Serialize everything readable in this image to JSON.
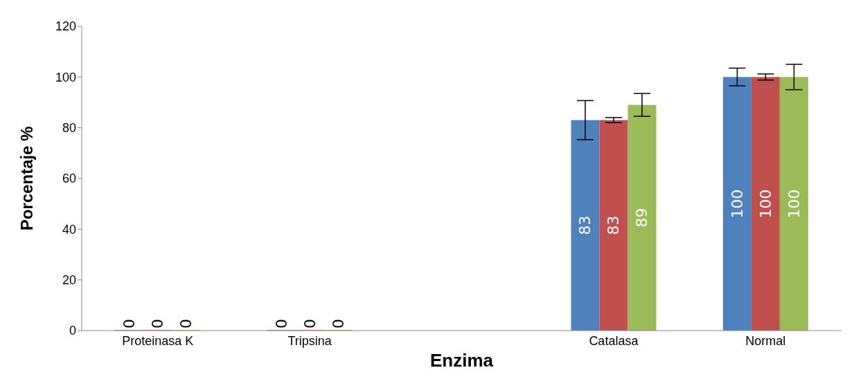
{
  "chart_data": {
    "type": "bar",
    "xlabel": "Enzima",
    "ylabel": "Porcentaje %",
    "categories": [
      "Proteinasa K",
      "Tripsina",
      null,
      "Catalasa",
      "Normal"
    ],
    "series": [
      {
        "color": "#4f81bd",
        "values": [
          0,
          0,
          null,
          83,
          100
        ],
        "errors": [
          null,
          null,
          null,
          7.7,
          3.5
        ]
      },
      {
        "color": "#c0504d",
        "values": [
          0,
          0,
          null,
          83,
          100
        ],
        "errors": [
          null,
          null,
          null,
          1,
          1.2
        ]
      },
      {
        "color": "#9bbb59",
        "values": [
          0,
          0,
          null,
          89,
          100
        ],
        "errors": [
          null,
          null,
          null,
          4.5,
          5
        ]
      }
    ],
    "ylim": [
      0,
      120
    ],
    "yticks": [
      0,
      20,
      40,
      60,
      80,
      100,
      120
    ],
    "grid": false,
    "legend": false,
    "data_labels": true
  }
}
